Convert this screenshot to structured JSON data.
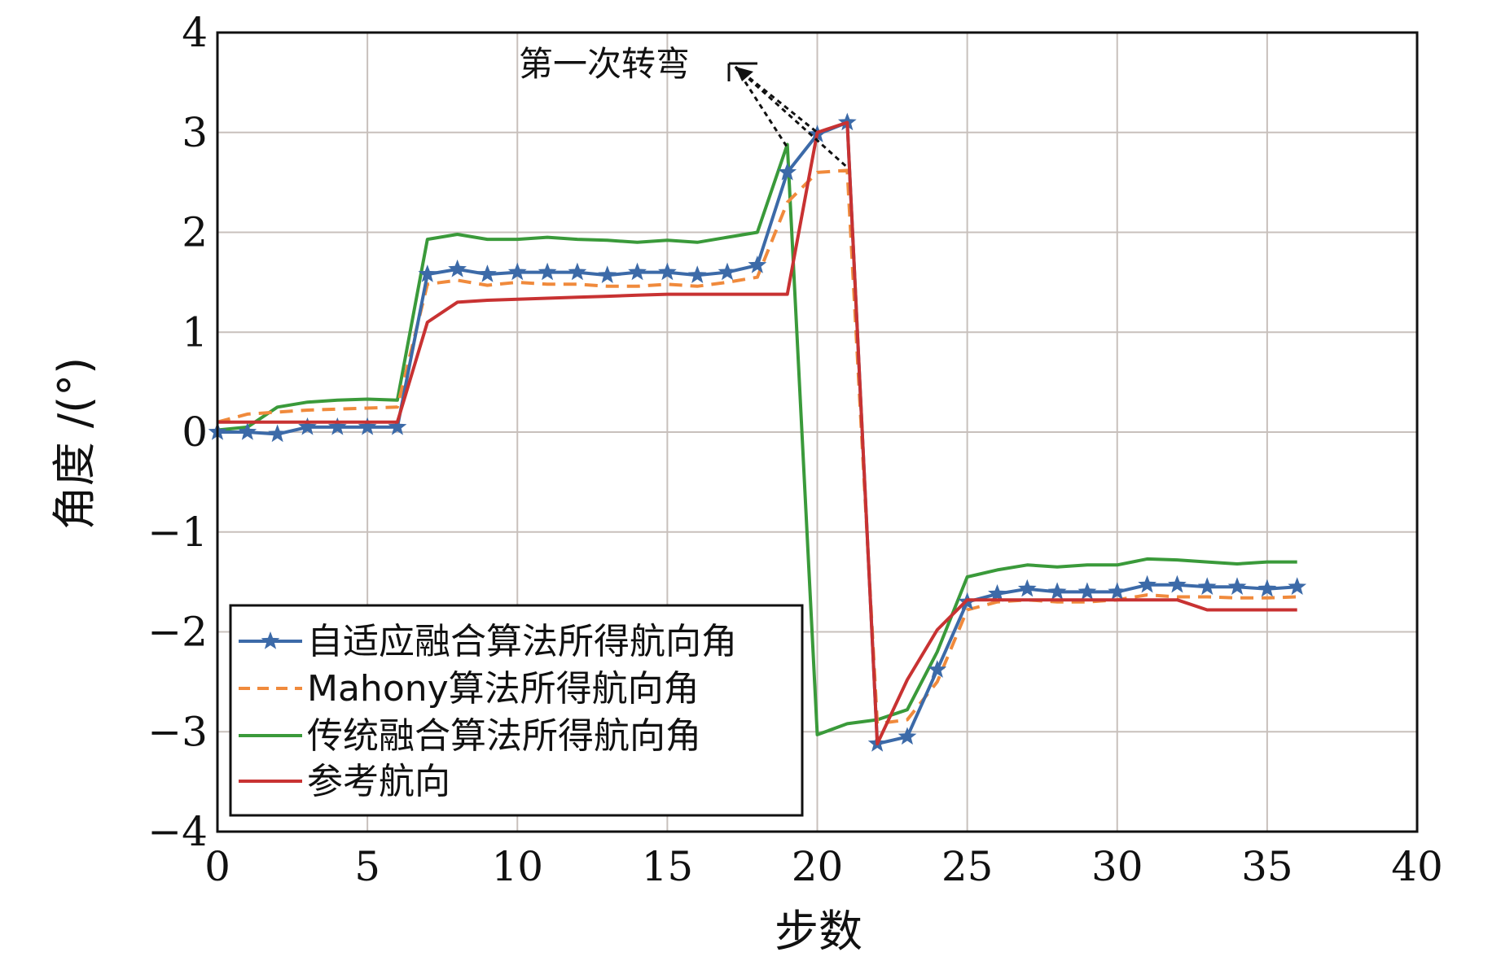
{
  "chart_data": {
    "type": "line",
    "xlabel": "步数",
    "ylabel": "角度 /(°)",
    "xlim": [
      0,
      40
    ],
    "ylim": [
      -4,
      4
    ],
    "xticks": [
      0,
      5,
      10,
      15,
      20,
      25,
      30,
      35,
      40
    ],
    "yticks": [
      4,
      3,
      2,
      1,
      0,
      -1,
      -2,
      -3,
      -4
    ],
    "ytick_labels": [
      "4",
      "3",
      "2",
      "1",
      "0",
      "−1",
      "−2",
      "−3",
      "−4"
    ],
    "grid": true,
    "legend_position": "bottom-left",
    "annotation": {
      "text": "第一次转弯",
      "targets": [
        [
          19,
          2.85
        ],
        [
          20,
          3.0
        ],
        [
          21,
          2.65
        ]
      ]
    },
    "series": [
      {
        "name": "自适应融合算法所得航向角",
        "color": "#3c6aa8",
        "style": "solid-star",
        "x": [
          0,
          1,
          2,
          3,
          4,
          5,
          6,
          7,
          8,
          9,
          10,
          11,
          12,
          13,
          14,
          15,
          16,
          17,
          18,
          19,
          20,
          21,
          22,
          23,
          24,
          25,
          26,
          27,
          28,
          29,
          30,
          31,
          32,
          33,
          34,
          35,
          36
        ],
        "y": [
          0.0,
          0.0,
          -0.02,
          0.05,
          0.05,
          0.05,
          0.05,
          1.58,
          1.63,
          1.58,
          1.6,
          1.6,
          1.6,
          1.57,
          1.6,
          1.6,
          1.57,
          1.6,
          1.67,
          2.6,
          2.98,
          3.1,
          -3.12,
          -3.05,
          -2.38,
          -1.7,
          -1.62,
          -1.57,
          -1.6,
          -1.6,
          -1.6,
          -1.53,
          -1.53,
          -1.55,
          -1.55,
          -1.57,
          -1.55
        ]
      },
      {
        "name": "Mahony算法所得航向角",
        "color": "#f08a3c",
        "style": "dashed",
        "x": [
          0,
          1,
          2,
          3,
          4,
          5,
          6,
          7,
          8,
          9,
          10,
          11,
          12,
          13,
          14,
          15,
          16,
          17,
          18,
          19,
          20,
          21,
          22,
          23,
          24,
          25,
          26,
          27,
          28,
          29,
          30,
          31,
          32,
          33,
          34,
          35,
          36
        ],
        "y": [
          0.1,
          0.18,
          0.2,
          0.22,
          0.23,
          0.24,
          0.25,
          1.48,
          1.52,
          1.47,
          1.5,
          1.48,
          1.48,
          1.46,
          1.46,
          1.48,
          1.46,
          1.5,
          1.55,
          2.3,
          2.6,
          2.62,
          -2.92,
          -2.88,
          -2.5,
          -1.78,
          -1.7,
          -1.68,
          -1.7,
          -1.7,
          -1.68,
          -1.63,
          -1.65,
          -1.65,
          -1.66,
          -1.66,
          -1.65
        ]
      },
      {
        "name": "传统融合算法所得航向角",
        "color": "#3a9a3a",
        "style": "solid",
        "x": [
          0,
          1,
          2,
          3,
          4,
          5,
          6,
          7,
          8,
          9,
          10,
          11,
          12,
          13,
          14,
          15,
          16,
          17,
          18,
          19,
          20,
          21,
          22,
          23,
          24,
          25,
          26,
          27,
          28,
          29,
          30,
          31,
          32,
          33,
          34,
          35,
          36
        ],
        "y": [
          0.02,
          0.05,
          0.25,
          0.3,
          0.32,
          0.33,
          0.32,
          1.93,
          1.98,
          1.93,
          1.93,
          1.95,
          1.93,
          1.92,
          1.9,
          1.92,
          1.9,
          1.95,
          2.0,
          2.88,
          -3.03,
          -2.92,
          -2.88,
          -2.78,
          -2.2,
          -1.45,
          -1.38,
          -1.33,
          -1.35,
          -1.33,
          -1.33,
          -1.27,
          -1.28,
          -1.3,
          -1.32,
          -1.3,
          -1.3
        ]
      },
      {
        "name": "参考航向",
        "color": "#c83232",
        "style": "solid",
        "x": [
          0,
          1,
          2,
          3,
          4,
          5,
          6,
          7,
          8,
          9,
          10,
          11,
          12,
          13,
          14,
          15,
          16,
          17,
          18,
          19,
          20,
          21,
          22,
          23,
          24,
          25,
          26,
          27,
          28,
          29,
          30,
          31,
          32,
          33,
          34,
          35,
          36
        ],
        "y": [
          0.1,
          0.1,
          0.1,
          0.1,
          0.1,
          0.1,
          0.1,
          1.1,
          1.3,
          1.32,
          1.33,
          1.34,
          1.35,
          1.36,
          1.37,
          1.38,
          1.38,
          1.38,
          1.38,
          1.38,
          3.0,
          3.1,
          -3.12,
          -2.48,
          -1.98,
          -1.68,
          -1.68,
          -1.68,
          -1.68,
          -1.68,
          -1.68,
          -1.68,
          -1.68,
          -1.78,
          -1.78,
          -1.78,
          -1.78
        ]
      }
    ]
  }
}
